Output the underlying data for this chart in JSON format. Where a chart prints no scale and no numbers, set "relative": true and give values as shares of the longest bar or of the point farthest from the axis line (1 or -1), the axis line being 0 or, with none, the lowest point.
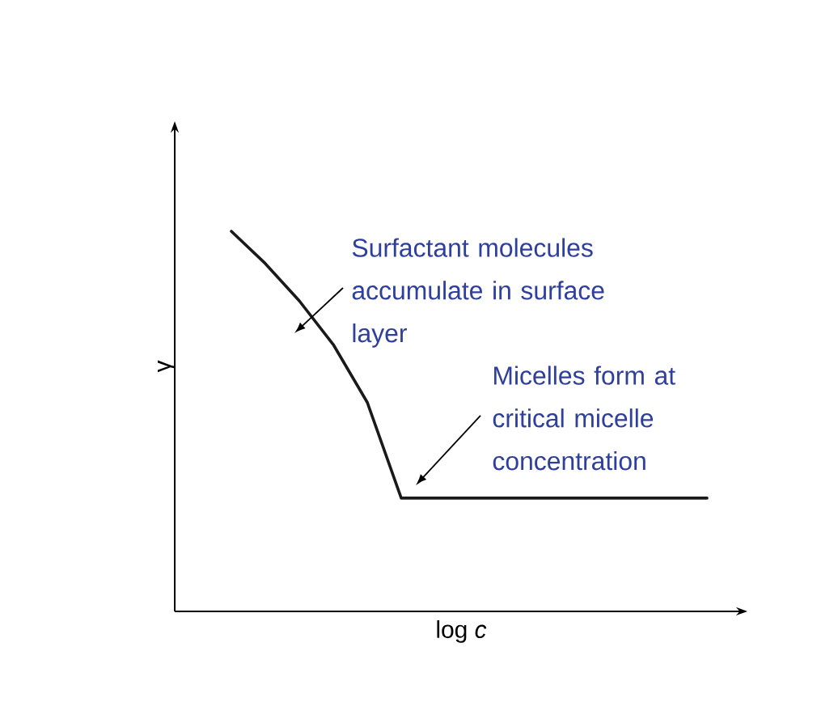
{
  "chart_data": {
    "type": "line",
    "relative": true,
    "xlabel": "log *c*",
    "ylabel": "γ",
    "categories": [
      null,
      null,
      null,
      null,
      null,
      null,
      null,
      null,
      null,
      null,
      null,
      null,
      null,
      null,
      null
    ],
    "series": [
      {
        "color": "#1a1a1a",
        "values": [
          1,
          0.915,
          0.817,
          0.702,
          0.55,
          0.298,
          0.298,
          0.298,
          0.298,
          0.298,
          0.298,
          0.298,
          0.298,
          0.298,
          0.298
        ]
      }
    ],
    "annotations": [
      "Surfactant molecules accumulate in surface layer",
      "Micelles form at critical micelle concentration"
    ],
    "grid": false,
    "marker": "none",
    "line_style": "solid"
  }
}
